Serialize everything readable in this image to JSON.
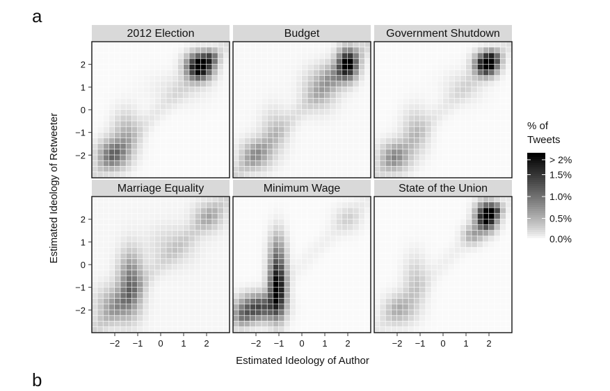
{
  "figure": {
    "panel_label_top": "a",
    "panel_label_bottom": "b"
  },
  "chart_data": {
    "type": "heatmap",
    "xlabel": "Estimated Ideology of Author",
    "ylabel": "Estimated Ideology of Retweeter",
    "xlim": [
      -3,
      3
    ],
    "ylim": [
      -3,
      3
    ],
    "x_ticks": [
      -2,
      -1,
      0,
      1,
      2
    ],
    "y_ticks": [
      -2,
      -1,
      0,
      1,
      2
    ],
    "x_tick_labels": [
      "−2",
      "−1",
      "0",
      "1",
      "2"
    ],
    "y_tick_labels": [
      "−2",
      "−1",
      "0",
      "1",
      "2"
    ],
    "colors": {
      "low": "#ffffff",
      "high": "#000000",
      "strip": "#d9d9d9",
      "grid": "#ffffff"
    },
    "legend": {
      "title": [
        "% of",
        "Tweets"
      ],
      "placement": "right",
      "labels": [
        "> 2%",
        "1.5%",
        "1.0%",
        "0.5%",
        "0.0%"
      ],
      "values": [
        2.0,
        1.5,
        1.0,
        0.5,
        0.0
      ]
    },
    "panels": [
      {
        "title": "2012 Election",
        "blobs": [
          [
            1.7,
            1.9,
            0.38,
            0.38,
            2.3
          ],
          [
            2.2,
            2.3,
            0.22,
            0.22,
            0.8
          ],
          [
            -2.1,
            -2.0,
            0.45,
            0.45,
            0.95
          ],
          [
            -1.5,
            -1.1,
            0.4,
            0.7,
            0.45
          ],
          [
            0.8,
            0.9,
            0.9,
            0.5,
            0.12
          ]
        ],
        "ridge": 0.16,
        "bg": 0.02
      },
      {
        "title": "Budget",
        "blobs": [
          [
            2.0,
            2.0,
            0.3,
            0.45,
            2.0
          ],
          [
            0.8,
            0.9,
            0.5,
            0.6,
            0.45
          ],
          [
            1.4,
            1.5,
            0.4,
            0.4,
            0.4
          ],
          [
            -2.0,
            -2.0,
            0.45,
            0.45,
            0.6
          ],
          [
            -1.2,
            -1.0,
            0.4,
            0.7,
            0.3
          ]
        ],
        "ridge": 0.22,
        "bg": 0.03
      },
      {
        "title": "Government Shutdown",
        "blobs": [
          [
            1.9,
            2.0,
            0.33,
            0.33,
            2.3
          ],
          [
            2.2,
            2.3,
            0.22,
            0.22,
            0.7
          ],
          [
            -2.1,
            -2.1,
            0.45,
            0.45,
            0.7
          ],
          [
            -1.2,
            -1.0,
            0.4,
            0.7,
            0.35
          ],
          [
            0.9,
            1.0,
            0.6,
            0.5,
            0.15
          ]
        ],
        "ridge": 0.15,
        "bg": 0.02
      },
      {
        "title": "Marriage Equality",
        "blobs": [
          [
            -1.3,
            -0.8,
            0.35,
            0.9,
            0.95
          ],
          [
            -2.0,
            -1.8,
            0.55,
            0.55,
            0.55
          ],
          [
            0.5,
            0.8,
            0.7,
            0.6,
            0.22
          ],
          [
            2.1,
            2.1,
            0.45,
            0.45,
            0.4
          ]
        ],
        "ridge": 0.2,
        "bg": 0.04
      },
      {
        "title": "Minimum Wage",
        "blobs": [
          [
            -1.05,
            -1.0,
            0.25,
            0.85,
            2.0
          ],
          [
            -1.05,
            0.6,
            0.25,
            0.7,
            0.55
          ],
          [
            -1.9,
            -1.9,
            0.6,
            0.4,
            1.3
          ],
          [
            -2.6,
            -2.3,
            0.3,
            0.3,
            0.6
          ],
          [
            2.0,
            2.0,
            0.4,
            0.4,
            0.2
          ]
        ],
        "ridge": 0.08,
        "bg": 0.02
      },
      {
        "title": "State of the Union",
        "blobs": [
          [
            1.9,
            2.1,
            0.3,
            0.4,
            2.3
          ],
          [
            2.3,
            2.4,
            0.2,
            0.2,
            0.8
          ],
          [
            1.3,
            1.3,
            0.3,
            0.3,
            0.5
          ],
          [
            -1.9,
            -2.0,
            0.45,
            0.45,
            0.45
          ],
          [
            -1.2,
            -0.8,
            0.35,
            0.8,
            0.3
          ]
        ],
        "ridge": 0.1,
        "bg": 0.02
      }
    ]
  }
}
